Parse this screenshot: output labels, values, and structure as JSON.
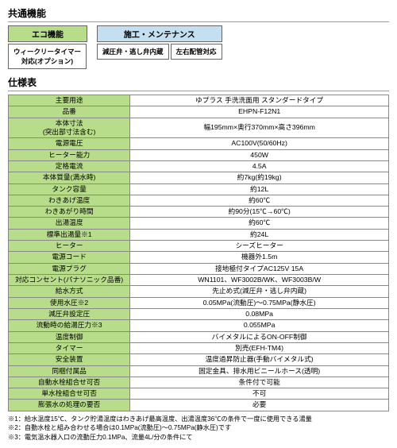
{
  "sectionCommon": "共通機能",
  "eco": {
    "head": "エコ機能",
    "items": [
      "ウィークリータイマー\n対応(オプション)"
    ]
  },
  "maint": {
    "head": "施工・メンテナンス",
    "items": [
      "減圧弁・逃し弁内蔵",
      "左右配管対応"
    ]
  },
  "sectionSpec": "仕様表",
  "spec_colors": {
    "th_bg": "#b8dd8a"
  },
  "rows": [
    {
      "k": "主要用途",
      "v": "ゆプラス 手洗洗面用 スタンダードタイプ"
    },
    {
      "k": "品番",
      "v": "EHPN-F12N1"
    },
    {
      "k": "本体寸法\n(突出部寸法含む)",
      "v": "幅195mm×奥行370mm×高さ396mm"
    },
    {
      "k": "電源電圧",
      "v": "AC100V(50/60Hz)"
    },
    {
      "k": "ヒーター能力",
      "v": "450W"
    },
    {
      "k": "定格電流",
      "v": "4.5A"
    },
    {
      "k": "本体質量(満水時)",
      "v": "約7kg(約19kg)"
    },
    {
      "k": "タンク容量",
      "v": "約12L"
    },
    {
      "k": "わきあげ温度",
      "v": "約60℃"
    },
    {
      "k": "わきあがり時間",
      "v": "約90分(15℃→60℃)"
    },
    {
      "k": "出湯温度",
      "v": "約60℃"
    },
    {
      "k": "標準出湯量※1",
      "v": "約24L"
    },
    {
      "k": "ヒーター",
      "v": "シーズヒーター"
    },
    {
      "k": "電源コード",
      "v": "機器外1.5m"
    },
    {
      "k": "電源プラグ",
      "v": "接地極付タイプAC125V 15A"
    },
    {
      "k": "対応コンセント(パナソニック品番)",
      "v": "WN1101、WF3002B/WK、WF3003B/W"
    },
    {
      "k": "給水方式",
      "v": "先止め式(減圧弁・逃し弁内蔵)"
    },
    {
      "k": "使用水圧※2",
      "v": "0.05MPa(流動圧)～0.75MPa(静水圧)"
    },
    {
      "k": "減圧弁設定圧",
      "v": "0.08MPa"
    },
    {
      "k": "流動時の給湯圧力※3",
      "v": "0.055MPa"
    },
    {
      "k": "温度制御",
      "v": "バイメタルによるON-OFF制御"
    },
    {
      "k": "タイマー",
      "v": "別売(EFH-TM4)"
    },
    {
      "k": "安全装置",
      "v": "温度過昇防止器(手動バイメタル式)"
    },
    {
      "k": "同梱付属品",
      "v": "固定金具、排水用ビニールホース(透明)"
    },
    {
      "k": "自動水栓組合せ可否",
      "v": "条件付で可能"
    },
    {
      "k": "単水栓組合せ可否",
      "v": "不可"
    },
    {
      "k": "膨張水の処理の要否",
      "v": "必要"
    }
  ],
  "footnotes": [
    "※1：給水温度15℃、タンク貯湯温度はわきあげ最高温度、出湯温度36℃の条件で一度に使用できる湯量",
    "※2：自動水栓と組み合わせる場合は0.1MPa(流動圧)～0.75MPa(静水圧)です",
    "※3：電気温水器入口の流動圧力0.1MPa、流量4L/分の条件にて"
  ]
}
